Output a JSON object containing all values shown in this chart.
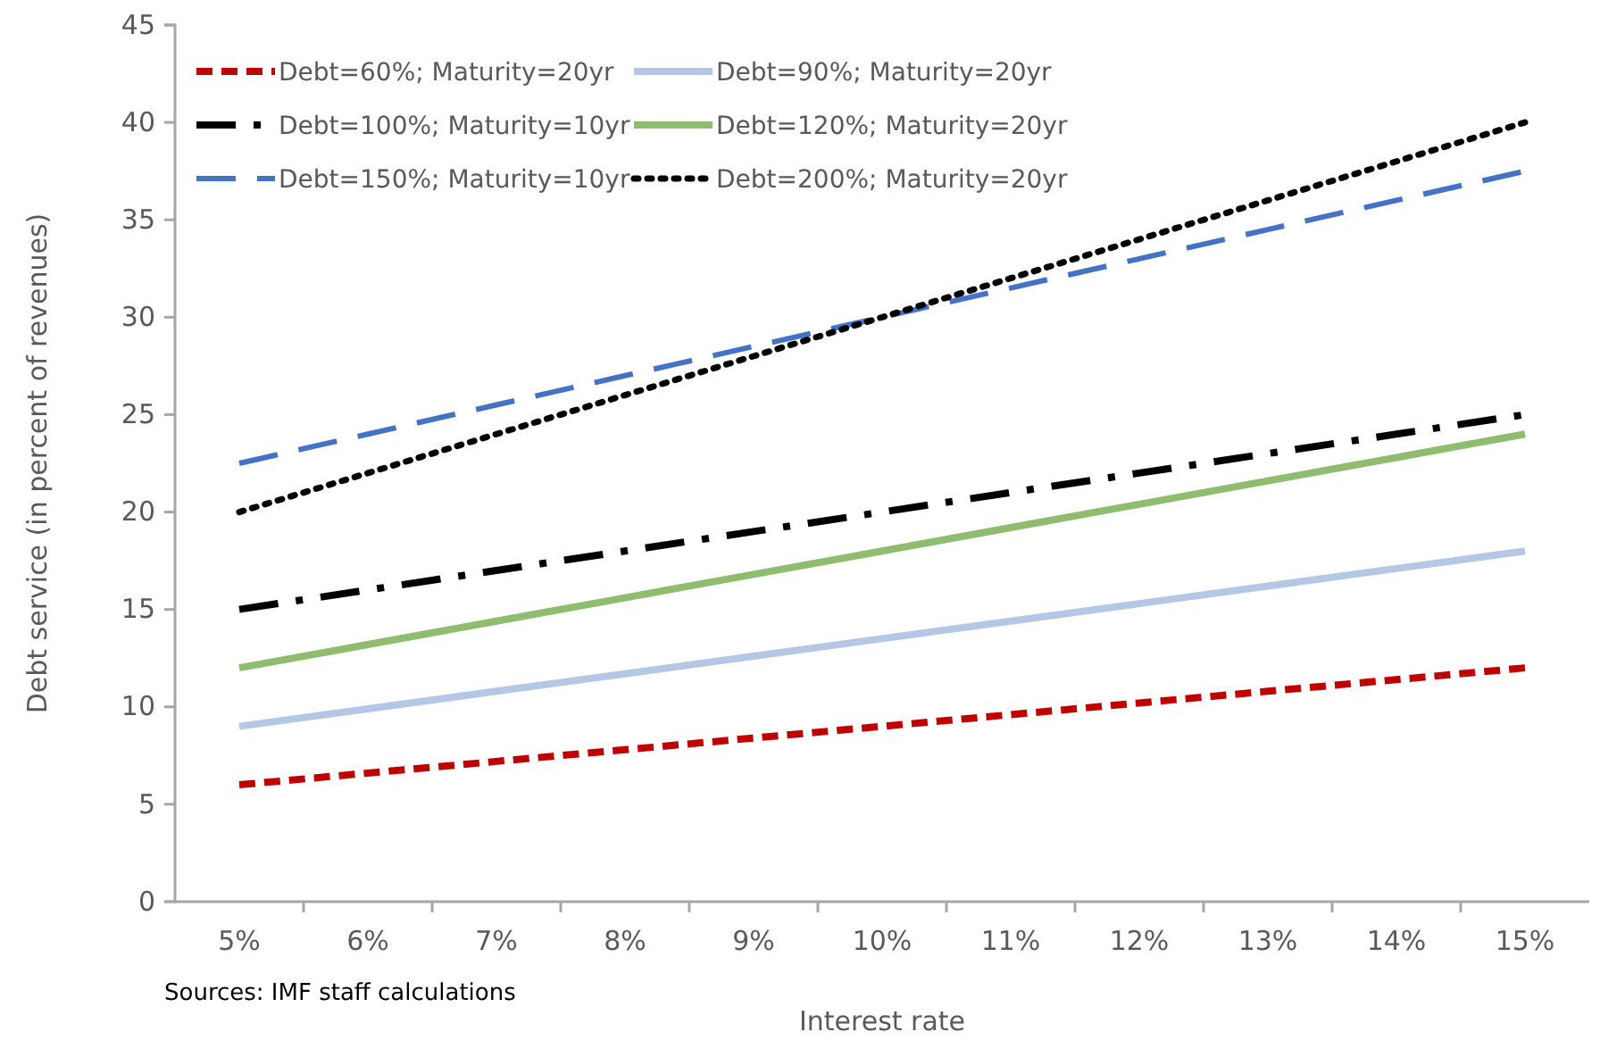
{
  "chart_data": {
    "type": "line",
    "xlabel": "Interest rate",
    "ylabel": "Debt service (in percent of revenues)",
    "annotations": [
      "Sources: IMF staff calculations"
    ],
    "categories": [
      "5%",
      "6%",
      "7%",
      "8%",
      "9%",
      "10%",
      "11%",
      "12%",
      "13%",
      "14%",
      "15%"
    ],
    "ylim": [
      0,
      45
    ],
    "yticks": [
      0,
      5,
      10,
      15,
      20,
      25,
      30,
      35,
      40,
      45
    ],
    "grid": false,
    "legend": "top left",
    "marker": "none",
    "series": [
      {
        "name": "Debt=60%; Maturity=20yr",
        "color": "#c00000",
        "line_style": "dashed",
        "values": [
          6,
          6.6,
          7.2,
          7.8,
          8.4,
          9,
          9.6,
          10.2,
          10.8,
          11.4,
          12
        ]
      },
      {
        "name": "Debt=90%; Maturity=20yr",
        "color": "#b4c7e7",
        "line_style": "solid",
        "values": [
          9,
          9.9,
          10.8,
          11.7,
          12.6,
          13.5,
          14.4,
          15.3,
          16.2,
          17.1,
          18
        ]
      },
      {
        "name": "Debt=100%; Maturity=10yr",
        "color": "#000000",
        "line_style": "dashdot",
        "values": [
          15,
          16,
          17,
          18,
          19,
          20,
          21,
          22,
          23,
          24,
          25
        ]
      },
      {
        "name": "Debt=120%; Maturity=20yr",
        "color": "#8fbc6e",
        "line_style": "solid",
        "values": [
          12,
          13.2,
          14.4,
          15.6,
          16.8,
          18,
          19.2,
          20.4,
          21.6,
          22.8,
          24
        ]
      },
      {
        "name": "Debt=150%; Maturity=10yr",
        "color": "#4472c4",
        "line_style": "longdashed",
        "values": [
          22.5,
          24,
          25.5,
          27,
          28.5,
          30,
          31.5,
          33,
          34.5,
          36,
          37.5
        ]
      },
      {
        "name": "Debt=200%; Maturity=20yr",
        "color": "#000000",
        "line_style": "dotted",
        "values": [
          20,
          22,
          24,
          26,
          28,
          30,
          32,
          34,
          36,
          38,
          40
        ]
      }
    ]
  }
}
